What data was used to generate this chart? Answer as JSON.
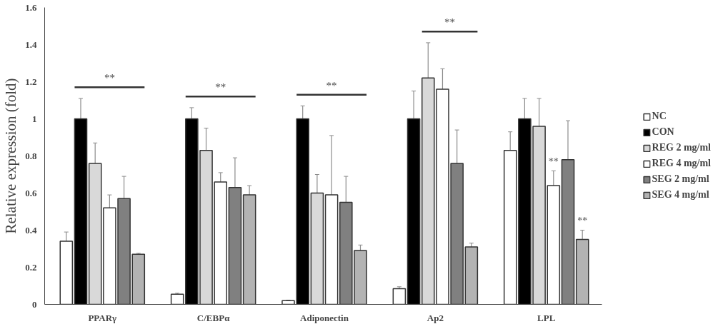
{
  "chart_data": {
    "type": "bar",
    "ylabel": "Relative expression (fold)",
    "categories": [
      "PPARγ",
      "C/EBPα",
      "Adiponectin",
      "Ap2",
      "LPL"
    ],
    "ylim": [
      0,
      1.6
    ],
    "yticks": [
      0,
      0.2,
      0.4,
      0.6,
      0.8,
      1,
      1.2,
      1.4,
      1.6
    ],
    "grid": false,
    "legend": "right",
    "series": [
      {
        "name": "NC",
        "color": "#ffffff",
        "values": [
          0.34,
          0.055,
          0.02,
          0.085,
          0.83
        ],
        "errors": [
          0.05,
          0.005,
          0.003,
          0.01,
          0.1
        ]
      },
      {
        "name": "CON",
        "color": "#000000",
        "values": [
          1,
          1,
          1,
          1,
          1
        ],
        "errors": [
          0.11,
          0.06,
          0.07,
          0.15,
          0.11
        ]
      },
      {
        "name": "REG 2 mg/ml",
        "color": "#d9d9d9",
        "values": [
          0.76,
          0.83,
          0.6,
          1.22,
          0.96
        ],
        "errors": [
          0.11,
          0.12,
          0.1,
          0.19,
          0.15
        ]
      },
      {
        "name": "REG 4 mg/ml",
        "color": "#ffffff",
        "values": [
          0.52,
          0.66,
          0.59,
          1.16,
          0.64
        ],
        "errors": [
          0.07,
          0.05,
          0.32,
          0.11,
          0.08
        ],
        "value_labels": [
          null,
          null,
          null,
          null,
          "**"
        ]
      },
      {
        "name": "SEG 2 mg/ml",
        "color": "#808080",
        "values": [
          0.57,
          0.63,
          0.55,
          0.76,
          0.78
        ],
        "errors": [
          0.12,
          0.16,
          0.14,
          0.18,
          0.21
        ]
      },
      {
        "name": "SEG 4 mg/ml",
        "color": "#b3b3b3",
        "values": [
          0.27,
          0.59,
          0.29,
          0.31,
          0.35
        ],
        "errors": [
          0.005,
          0.05,
          0.03,
          0.02,
          0.05
        ],
        "value_labels": [
          null,
          null,
          null,
          null,
          "**"
        ]
      }
    ],
    "annotations": [
      "**",
      "**",
      "**",
      "**"
    ]
  }
}
